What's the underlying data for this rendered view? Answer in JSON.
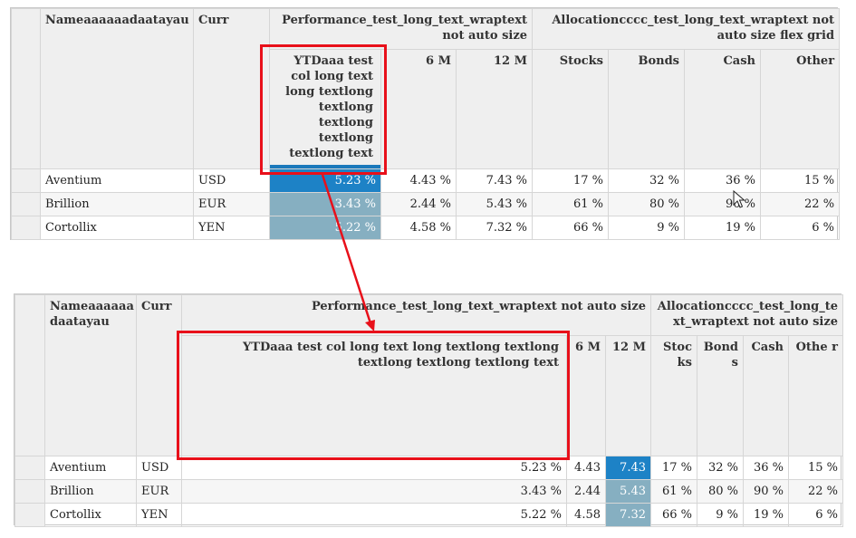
{
  "grid_top": {
    "headers": {
      "name": "Nameaaaaaadaatayau",
      "curr": "Curr",
      "perf_group": "Performance_test_long_text_wraptext not auto size",
      "alloc_group": "Allocationcccc_test_long_text_wraptext not auto size flex grid",
      "ytd": "YTDaaa test col long text long textlong textlong textlong textlong textlong text",
      "m6": "6 M",
      "m12": "12 M",
      "stocks": "Stocks",
      "bonds": "Bonds",
      "cash": "Cash",
      "other": "Other"
    },
    "rows": [
      {
        "name": "Aventium",
        "curr": "USD",
        "ytd": "5.23 %",
        "m6": "4.43 %",
        "m12": "7.43 %",
        "stocks": "17 %",
        "bonds": "32 %",
        "cash": "36 %",
        "other": "15 %"
      },
      {
        "name": "Brillion",
        "curr": "EUR",
        "ytd": "3.43 %",
        "m6": "2.44 %",
        "m12": "5.43 %",
        "stocks": "61 %",
        "bonds": "80 %",
        "cash": "90 %",
        "other": "22 %"
      },
      {
        "name": "Cortollix",
        "curr": "YEN",
        "ytd": "5.22 %",
        "m6": "4.58 %",
        "m12": "7.32 %",
        "stocks": "66 %",
        "bonds": "9 %",
        "cash": "19 %",
        "other": "6 %"
      }
    ]
  },
  "grid_bottom": {
    "headers": {
      "name": "Nameaaaaaa daatayau",
      "curr": "Curr",
      "perf_group": "Performance_test_long_text_wraptext not auto size",
      "alloc_group": "Allocationcccc_test_long_te xt_wraptext not auto size",
      "ytd": "YTDaaa test col long text long textlong textlong textlong textlong textlong text",
      "m6": "6 M",
      "m12": "12 M",
      "stocks": "Stoc ks",
      "bonds": "Bond s",
      "cash": "Cash",
      "other": "Othe r"
    },
    "rows": [
      {
        "name": "Aventium",
        "curr": "USD",
        "ytd": "5.23 %",
        "m6": "4.43",
        "m12": "7.43",
        "stocks": "17 %",
        "bonds": "32 %",
        "cash": "36 %",
        "other": "15 %"
      },
      {
        "name": "Brillion",
        "curr": "EUR",
        "ytd": "3.43 %",
        "m6": "2.44",
        "m12": "5.43",
        "stocks": "61 %",
        "bonds": "80 %",
        "cash": "90 %",
        "other": "22 %"
      },
      {
        "name": "Cortollix",
        "curr": "YEN",
        "ytd": "5.22 %",
        "m6": "4.58",
        "m12": "7.32",
        "stocks": "66 %",
        "bonds": "9 %",
        "cash": "19 %",
        "other": "6 %"
      }
    ]
  },
  "colors": {
    "highlight_dark": "#1d82c6",
    "highlight_mid": "#86afc1",
    "annotation_red": "#e8101a",
    "header_bg": "#efefef"
  },
  "annotations": {
    "icons": [
      "mouse-cursor-icon",
      "arrow-annotation"
    ]
  }
}
